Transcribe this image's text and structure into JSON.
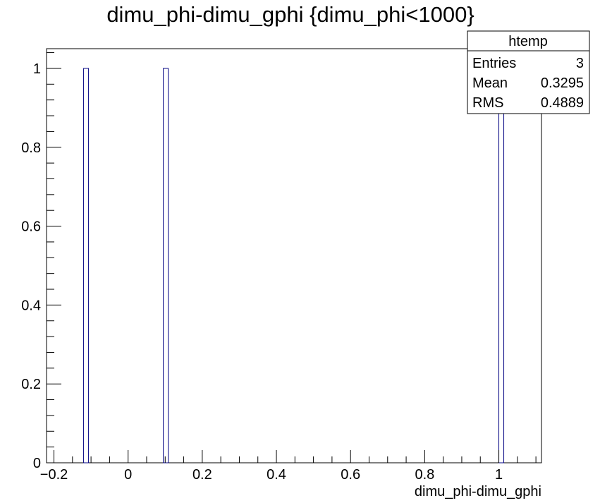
{
  "chart_data": {
    "type": "bar",
    "title": "dimu_phi-dimu_gphi {dimu_phi<1000}",
    "xlabel": "dimu_phi-dimu_gphi",
    "ylabel": "",
    "xlim": [
      -0.22,
      1.115
    ],
    "ylim": [
      0,
      1.05
    ],
    "x_ticks": [
      -0.2,
      0,
      0.2,
      0.4,
      0.6,
      0.8,
      1
    ],
    "x_tick_labels": [
      "−0.2",
      "0",
      "0.2",
      "0.4",
      "0.6",
      "0.8",
      "1"
    ],
    "y_ticks": [
      0,
      0.2,
      0.4,
      0.6,
      0.8,
      1
    ],
    "y_tick_labels": [
      "0",
      "0.2",
      "0.4",
      "0.6",
      "0.8",
      "1"
    ],
    "bin_width": 0.01335,
    "bins": [
      {
        "x": -0.12,
        "value": 1
      },
      {
        "x": 0.095,
        "value": 1
      },
      {
        "x": 1.0,
        "value": 1
      }
    ],
    "bar_color": "#000080",
    "grid": false,
    "legend_position": "top-right"
  },
  "stats": {
    "name": "htemp",
    "rows": [
      {
        "label": "Entries",
        "value": "3"
      },
      {
        "label": "Mean",
        "value": "0.3295"
      },
      {
        "label": "RMS",
        "value": "0.4889"
      }
    ]
  }
}
